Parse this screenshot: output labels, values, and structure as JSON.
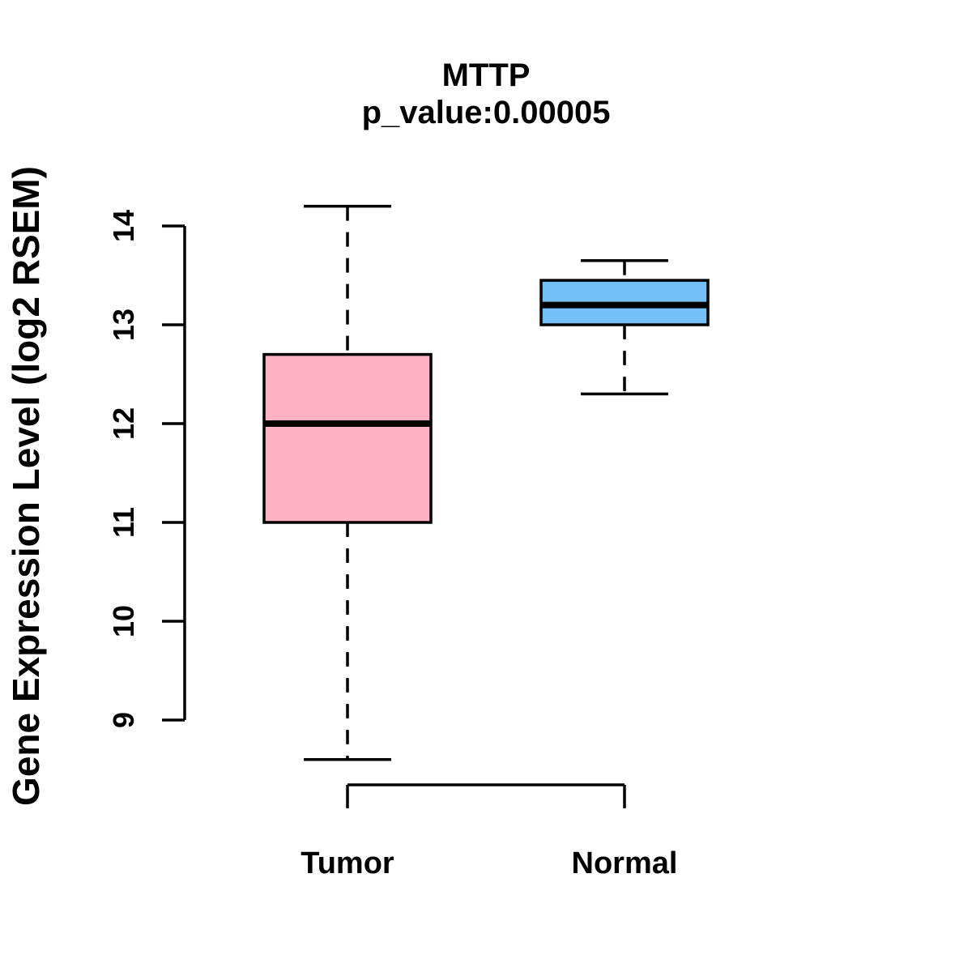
{
  "figure": {
    "background": "#FFFFFF",
    "frame_color": "#000000"
  },
  "chart_data": {
    "type": "boxplot",
    "title": "MTTP",
    "subtitle": "p_value:0.00005",
    "ylabel": "Gene Expression Level (log2 RSEM)",
    "xlabel": "",
    "categories": [
      "Tumor",
      "Normal"
    ],
    "yticks": [
      9,
      10,
      11,
      12,
      13,
      14
    ],
    "ylim": [
      8.4,
      14.3
    ],
    "grid": false,
    "legend": "none",
    "orientation": "vertical",
    "box_style": {
      "border_color": "#000000",
      "median_color": "#000000",
      "whisker_style": "dashed"
    },
    "series": [
      {
        "name": "Tumor",
        "color": "#FFB3C5",
        "whisker_low": 8.6,
        "q1": 11.0,
        "median": 12.0,
        "q3": 12.7,
        "whisker_high": 14.2
      },
      {
        "name": "Normal",
        "color": "#74BFF7",
        "whisker_low": 12.3,
        "q1": 13.0,
        "median": 13.2,
        "q3": 13.45,
        "whisker_high": 13.65
      }
    ]
  }
}
